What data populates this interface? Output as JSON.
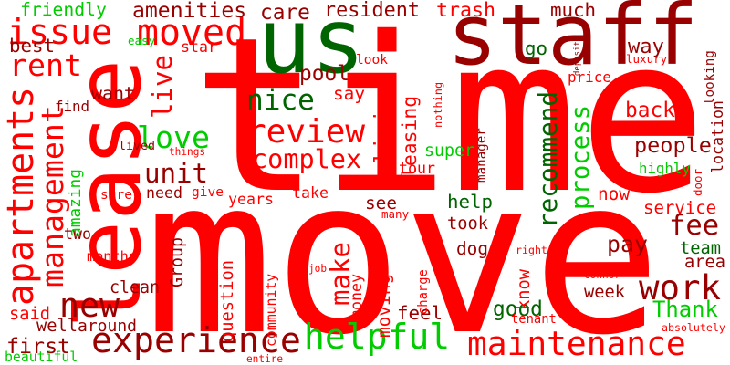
{
  "words": [
    {
      "text": "time",
      "color": "#ff0000"
    },
    {
      "text": "move",
      "color": "#ff0000"
    },
    {
      "text": "lease",
      "color": "#ff0000"
    },
    {
      "text": "staff",
      "color": "#990000"
    },
    {
      "text": "us",
      "color": "#006400"
    },
    {
      "text": "experience",
      "color": "#990000"
    },
    {
      "text": "maintenance",
      "color": "#ff0000"
    },
    {
      "text": "helpful",
      "color": "#00cc00"
    },
    {
      "text": "review",
      "color": "#ff0000"
    },
    {
      "text": "apartments",
      "color": "#ff0000"
    },
    {
      "text": "management",
      "color": "#ff0000"
    },
    {
      "text": "moved",
      "color": "#ff0000"
    },
    {
      "text": "issue",
      "color": "#ff0000"
    },
    {
      "text": "rent",
      "color": "#ff0000"
    },
    {
      "text": "live",
      "color": "#ff0000"
    },
    {
      "text": "nice",
      "color": "#006400"
    },
    {
      "text": "complex",
      "color": "#ff0000"
    },
    {
      "text": "living",
      "color": "#ff0000"
    },
    {
      "text": "leasing",
      "color": "#ff0000"
    },
    {
      "text": "love",
      "color": "#00cc00"
    },
    {
      "text": "unit",
      "color": "#990000"
    },
    {
      "text": "amazing",
      "color": "#00cc00"
    },
    {
      "text": "new",
      "color": "#990000"
    },
    {
      "text": "work",
      "color": "#990000"
    },
    {
      "text": "process",
      "color": "#00cc00"
    },
    {
      "text": "recommend",
      "color": "#006400"
    },
    {
      "text": "people",
      "color": "#990000"
    },
    {
      "text": "fee",
      "color": "#990000"
    },
    {
      "text": "Thank",
      "color": "#00cc00"
    },
    {
      "text": "make",
      "color": "#ff0000"
    },
    {
      "text": "friendly",
      "color": "#00cc00"
    },
    {
      "text": "amenities",
      "color": "#990000"
    },
    {
      "text": "care",
      "color": "#990000"
    },
    {
      "text": "resident",
      "color": "#990000"
    },
    {
      "text": "trash",
      "color": "#ff0000"
    },
    {
      "text": "much",
      "color": "#990000"
    },
    {
      "text": "best",
      "color": "#990000"
    },
    {
      "text": "easy",
      "color": "#00cc00"
    },
    {
      "text": "star",
      "color": "#ff0000"
    },
    {
      "text": "pool",
      "color": "#990000"
    },
    {
      "text": "look",
      "color": "#ff0000"
    },
    {
      "text": "say",
      "color": "#ff0000"
    },
    {
      "text": "go",
      "color": "#006400"
    },
    {
      "text": "way",
      "color": "#990000"
    },
    {
      "text": "price",
      "color": "#ff0000"
    },
    {
      "text": "luxury",
      "color": "#ff0000"
    },
    {
      "text": "looking",
      "color": "#990000"
    },
    {
      "text": "location",
      "color": "#990000"
    },
    {
      "text": "back",
      "color": "#ff0000"
    },
    {
      "text": "super",
      "color": "#00cc00"
    },
    {
      "text": "tour",
      "color": "#ff0000"
    },
    {
      "text": "highly",
      "color": "#00cc00"
    },
    {
      "text": "now",
      "color": "#ff0000"
    },
    {
      "text": "want",
      "color": "#990000"
    },
    {
      "text": "find",
      "color": "#990000"
    },
    {
      "text": "lived",
      "color": "#990000"
    },
    {
      "text": "things",
      "color": "#ff0000"
    },
    {
      "text": "need",
      "color": "#990000"
    },
    {
      "text": "sure",
      "color": "#ff0000"
    },
    {
      "text": "give",
      "color": "#ff0000"
    },
    {
      "text": "years",
      "color": "#ff0000"
    },
    {
      "text": "take",
      "color": "#ff0000"
    },
    {
      "text": "see",
      "color": "#990000"
    },
    {
      "text": "help",
      "color": "#006400"
    },
    {
      "text": "service",
      "color": "#ff0000"
    },
    {
      "text": "many",
      "color": "#ff0000"
    },
    {
      "text": "took",
      "color": "#990000"
    },
    {
      "text": "dog",
      "color": "#990000"
    },
    {
      "text": "team",
      "color": "#006400"
    },
    {
      "text": "area",
      "color": "#990000"
    },
    {
      "text": "pay",
      "color": "#990000"
    },
    {
      "text": "months",
      "color": "#ff0000"
    },
    {
      "text": "two",
      "color": "#990000"
    },
    {
      "text": "job",
      "color": "#ff0000"
    },
    {
      "text": "right",
      "color": "#ff0000"
    },
    {
      "text": "clean",
      "color": "#990000"
    },
    {
      "text": "question",
      "color": "#ff0000"
    },
    {
      "text": "community",
      "color": "#ff0000"
    },
    {
      "text": "moving",
      "color": "#ff0000"
    },
    {
      "text": "good",
      "color": "#006400"
    },
    {
      "text": "week",
      "color": "#990000"
    },
    {
      "text": "said",
      "color": "#ff0000"
    },
    {
      "text": "well",
      "color": "#990000"
    },
    {
      "text": "around",
      "color": "#990000"
    },
    {
      "text": "feel",
      "color": "#990000"
    },
    {
      "text": "tenant",
      "color": "#ff0000"
    },
    {
      "text": "first",
      "color": "#990000"
    },
    {
      "text": "beautiful",
      "color": "#00cc00"
    },
    {
      "text": "entire",
      "color": "#ff0000"
    },
    {
      "text": "absolutely",
      "color": "#ff0000"
    },
    {
      "text": "Connor",
      "color": "#ff0000"
    },
    {
      "text": "know",
      "color": "#ff0000"
    },
    {
      "text": "Group",
      "color": "#990000"
    },
    {
      "text": "charge",
      "color": "#ff0000"
    },
    {
      "text": "money",
      "color": "#ff0000"
    },
    {
      "text": "manager",
      "color": "#990000"
    },
    {
      "text": "nothing",
      "color": "#ff0000"
    },
    {
      "text": "building",
      "color": "#ff0000"
    },
    {
      "text": "deposit",
      "color": "#990000"
    },
    {
      "text": "door",
      "color": "#ff0000"
    }
  ]
}
